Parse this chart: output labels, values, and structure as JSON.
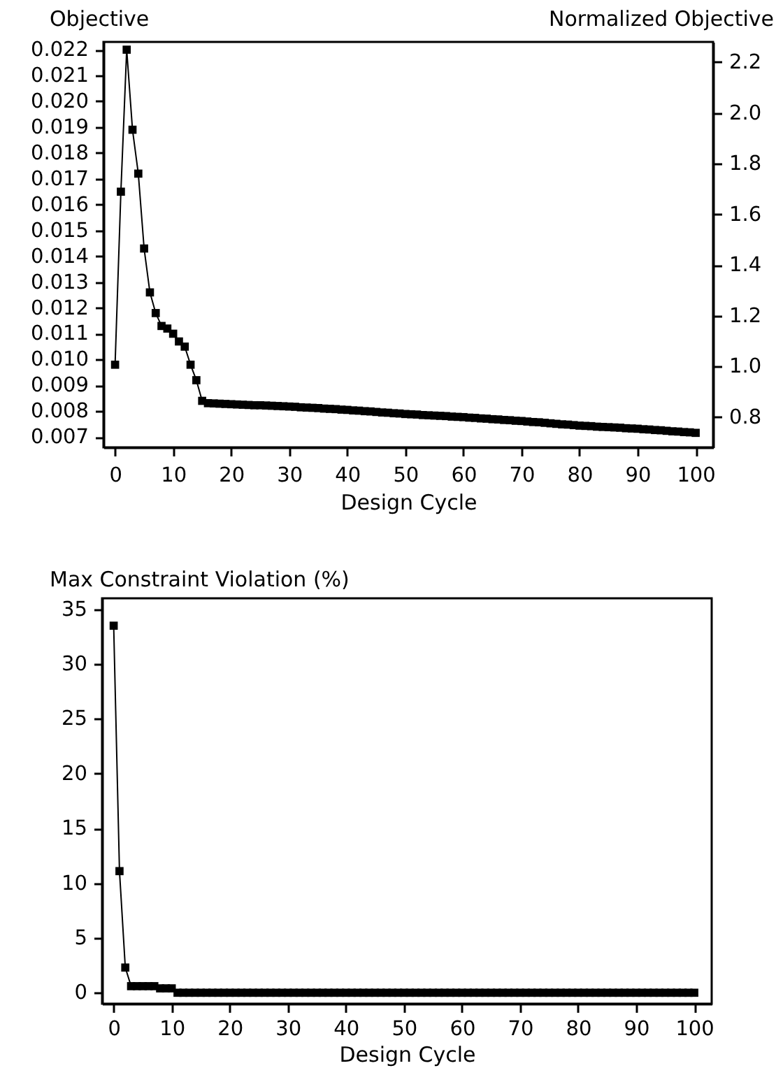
{
  "chart_data": [
    {
      "type": "line",
      "ylabel": "Objective",
      "y2label": "Normalized Objective",
      "xlabel": "Design Cycle",
      "marker": "square",
      "line_style": "solid",
      "xlim": [
        -2,
        103
      ],
      "xticks": [
        0,
        10,
        20,
        30,
        40,
        50,
        60,
        70,
        80,
        90,
        100
      ],
      "ylim": [
        0.0066,
        0.0223
      ],
      "yticks": [
        0.007,
        0.008,
        0.009,
        {
          "value": 0.01,
          "label": "0.010"
        },
        0.011,
        0.012,
        0.013,
        0.014,
        0.015,
        0.016,
        0.017,
        0.018,
        0.019,
        {
          "value": 0.02,
          "label": "0.020"
        },
        0.021,
        0.022
      ],
      "y2lim": [
        0.68,
        2.28
      ],
      "y2ticks": [
        0.8,
        {
          "value": 1,
          "label": "1.0"
        },
        1.2,
        1.4,
        1.6,
        1.8,
        {
          "value": 2,
          "label": "2.0"
        },
        2.2
      ],
      "x": [
        0,
        1,
        2,
        3,
        4,
        5,
        6,
        7,
        8,
        9,
        10,
        11,
        12,
        13,
        14,
        15,
        16,
        17,
        18,
        19,
        20,
        21,
        22,
        23,
        24,
        25,
        26,
        27,
        28,
        29,
        30,
        31,
        32,
        33,
        34,
        35,
        36,
        37,
        38,
        39,
        40,
        41,
        42,
        43,
        44,
        45,
        46,
        47,
        48,
        49,
        50,
        51,
        52,
        53,
        54,
        55,
        56,
        57,
        58,
        59,
        60,
        61,
        62,
        63,
        64,
        65,
        66,
        67,
        68,
        69,
        70,
        71,
        72,
        73,
        74,
        75,
        76,
        77,
        78,
        79,
        80,
        81,
        82,
        83,
        84,
        85,
        86,
        87,
        88,
        89,
        90,
        91,
        92,
        93,
        94,
        95,
        96,
        97,
        98,
        99,
        100
      ],
      "series": [
        {
          "color": "#000000",
          "values": [
            0.0098,
            0.0165,
            0.022,
            0.0189,
            0.0172,
            0.0143,
            0.0126,
            0.0118,
            0.0113,
            0.0112,
            0.011,
            0.0107,
            0.0105,
            0.0098,
            0.0092,
            0.0084,
            0.00831,
            0.0083,
            0.00829,
            0.00828,
            0.00827,
            0.00826,
            0.00825,
            0.00824,
            0.00823,
            0.00823,
            0.00822,
            0.00821,
            0.0082,
            0.00819,
            0.00818,
            0.00817,
            0.00815,
            0.00814,
            0.00813,
            0.00812,
            0.0081,
            0.00809,
            0.00808,
            0.00806,
            0.00805,
            0.00803,
            0.00802,
            0.008,
            0.00799,
            0.00797,
            0.00795,
            0.00794,
            0.00792,
            0.00791,
            0.00789,
            0.00788,
            0.00787,
            0.00785,
            0.00784,
            0.00783,
            0.00782,
            0.00781,
            0.00779,
            0.00778,
            0.00777,
            0.00775,
            0.00774,
            0.00772,
            0.00771,
            0.00769,
            0.00768,
            0.00766,
            0.00765,
            0.00763,
            0.00762,
            0.0076,
            0.00758,
            0.00757,
            0.00755,
            0.00753,
            0.00751,
            0.00749,
            0.00748,
            0.00746,
            0.00744,
            0.00743,
            0.00742,
            0.0074,
            0.00739,
            0.00738,
            0.00737,
            0.00736,
            0.00734,
            0.00733,
            0.00732,
            0.0073,
            0.00729,
            0.00727,
            0.00726,
            0.00724,
            0.00722,
            0.00721,
            0.00719,
            0.00718,
            0.00716
          ]
        }
      ]
    },
    {
      "type": "line",
      "ylabel": "Max Constraint Violation (%)",
      "xlabel": "Design Cycle",
      "marker": "square",
      "line_style": "solid",
      "xlim": [
        -2,
        103
      ],
      "xticks": [
        0,
        10,
        20,
        30,
        40,
        50,
        60,
        70,
        80,
        90,
        100
      ],
      "ylim": [
        -1,
        36
      ],
      "yticks": [
        0,
        5,
        10,
        15,
        20,
        25,
        30,
        35
      ],
      "x": [
        0,
        1,
        2,
        3,
        4,
        5,
        6,
        7,
        8,
        9,
        10,
        11,
        12,
        13,
        14,
        15,
        16,
        17,
        18,
        19,
        20,
        21,
        22,
        23,
        24,
        25,
        26,
        27,
        28,
        29,
        30,
        31,
        32,
        33,
        34,
        35,
        36,
        37,
        38,
        39,
        40,
        41,
        42,
        43,
        44,
        45,
        46,
        47,
        48,
        49,
        50,
        51,
        52,
        53,
        54,
        55,
        56,
        57,
        58,
        59,
        60,
        61,
        62,
        63,
        64,
        65,
        66,
        67,
        68,
        69,
        70,
        71,
        72,
        73,
        74,
        75,
        76,
        77,
        78,
        79,
        80,
        81,
        82,
        83,
        84,
        85,
        86,
        87,
        88,
        89,
        90,
        91,
        92,
        93,
        94,
        95,
        96,
        97,
        98,
        99,
        100
      ],
      "series": [
        {
          "color": "#000000",
          "values": [
            33.5,
            11.1,
            2.3,
            0.6,
            0.6,
            0.6,
            0.6,
            0.6,
            0.4,
            0.4,
            0.4,
            0,
            0,
            0,
            0,
            0,
            0,
            0,
            0,
            0,
            0,
            0,
            0,
            0,
            0,
            0,
            0,
            0,
            0,
            0,
            0,
            0,
            0,
            0,
            0,
            0,
            0,
            0,
            0,
            0,
            0,
            0,
            0,
            0,
            0,
            0,
            0,
            0,
            0,
            0,
            0,
            0,
            0,
            0,
            0,
            0,
            0,
            0,
            0,
            0,
            0,
            0,
            0,
            0,
            0,
            0,
            0,
            0,
            0,
            0,
            0,
            0,
            0,
            0,
            0,
            0,
            0,
            0,
            0,
            0,
            0,
            0,
            0,
            0,
            0,
            0,
            0,
            0,
            0,
            0,
            0,
            0,
            0,
            0,
            0,
            0,
            0,
            0,
            0,
            0,
            0
          ]
        }
      ]
    }
  ]
}
